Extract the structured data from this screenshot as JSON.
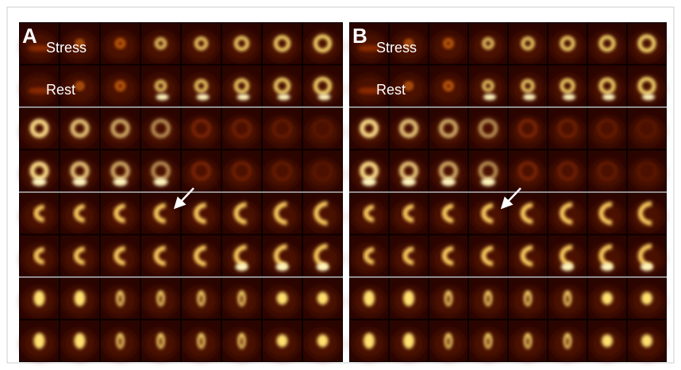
{
  "panels": [
    {
      "label": "A",
      "stress": "Stress",
      "rest": "Rest"
    },
    {
      "label": "B",
      "stress": "Stress",
      "rest": "Rest"
    }
  ]
}
